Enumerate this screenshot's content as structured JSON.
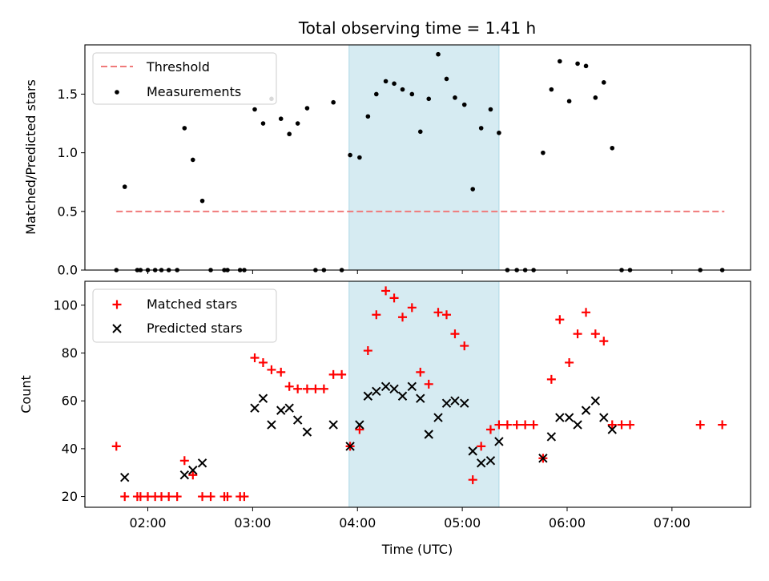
{
  "title": "Total observing time = 1.41 h",
  "colors": {
    "threshold": "#f07a7a",
    "measurement": "#000000",
    "matched": "#ff0000",
    "predicted": "#000000",
    "span_fill": "#add8e6"
  },
  "chart_data": [
    {
      "type": "scatter",
      "panel": "top",
      "ylabel": "Matched/Predicted stars",
      "xlabel": "",
      "xlim_hours": [
        1.4,
        7.75
      ],
      "ylim": [
        0,
        1.92
      ],
      "yticks": [
        0.0,
        0.5,
        1.0,
        1.5
      ],
      "ytick_labels": [
        "0.0",
        "0.5",
        "1.0",
        "1.5"
      ],
      "xticks_hours": [
        2,
        3,
        4,
        5,
        6,
        7
      ],
      "observing_span_hours": [
        3.92,
        5.35
      ],
      "legend_position": "upper-left",
      "threshold": {
        "name": "Threshold",
        "value": 0.5,
        "x_range_hours": [
          1.7,
          7.5
        ]
      },
      "series": [
        {
          "name": "Measurements",
          "x_hours": [
            1.7,
            1.78,
            1.9,
            1.93,
            2.0,
            2.07,
            2.13,
            2.2,
            2.28,
            2.35,
            2.43,
            2.52,
            2.6,
            2.73,
            2.76,
            2.88,
            2.92,
            3.02,
            3.1,
            3.18,
            3.27,
            3.35,
            3.43,
            3.52,
            3.6,
            3.68,
            3.77,
            3.85,
            3.93,
            4.02,
            4.1,
            4.18,
            4.27,
            4.35,
            4.43,
            4.52,
            4.6,
            4.68,
            4.77,
            4.85,
            4.93,
            5.02,
            5.1,
            5.18,
            5.27,
            5.35,
            5.43,
            5.52,
            5.6,
            5.68,
            5.77,
            5.85,
            5.93,
            6.02,
            6.1,
            6.18,
            6.27,
            6.35,
            6.43,
            6.52,
            6.6,
            7.27,
            7.48
          ],
          "y": [
            0.0,
            0.71,
            0.0,
            0.0,
            0.0,
            0.0,
            0.0,
            0.0,
            0.0,
            1.21,
            0.94,
            0.59,
            0.0,
            0.0,
            0.0,
            0.0,
            0.0,
            1.37,
            1.25,
            1.46,
            1.29,
            1.16,
            1.25,
            1.38,
            0.0,
            0.0,
            1.43,
            0.0,
            0.98,
            0.96,
            1.31,
            1.5,
            1.61,
            1.59,
            1.54,
            1.5,
            1.18,
            1.46,
            1.84,
            1.63,
            1.47,
            1.41,
            0.69,
            1.21,
            1.37,
            1.17,
            0.0,
            0.0,
            0.0,
            0.0,
            1.0,
            1.54,
            1.78,
            1.44,
            1.76,
            1.74,
            1.47,
            1.6,
            1.04,
            0.0,
            0.0,
            0.0,
            0.0
          ]
        }
      ]
    },
    {
      "type": "scatter",
      "panel": "bottom",
      "ylabel": "Count",
      "xlabel": "Time (UTC)",
      "xlim_hours": [
        1.4,
        7.75
      ],
      "ylim": [
        15.5,
        110
      ],
      "yticks": [
        20,
        40,
        60,
        80,
        100
      ],
      "ytick_labels": [
        "20",
        "40",
        "60",
        "80",
        "100"
      ],
      "xticks_hours": [
        2,
        3,
        4,
        5,
        6,
        7
      ],
      "xtick_labels": [
        "02:00",
        "03:00",
        "04:00",
        "05:00",
        "06:00",
        "07:00"
      ],
      "observing_span_hours": [
        3.92,
        5.35
      ],
      "legend_position": "upper-left",
      "series": [
        {
          "name": "Matched stars",
          "marker": "plus",
          "x_hours": [
            1.7,
            1.78,
            1.9,
            1.93,
            2.0,
            2.07,
            2.13,
            2.2,
            2.28,
            2.35,
            2.43,
            2.52,
            2.6,
            2.73,
            2.76,
            2.88,
            2.92,
            3.02,
            3.1,
            3.18,
            3.27,
            3.35,
            3.43,
            3.52,
            3.6,
            3.68,
            3.77,
            3.85,
            3.93,
            4.02,
            4.1,
            4.18,
            4.27,
            4.35,
            4.43,
            4.52,
            4.6,
            4.68,
            4.77,
            4.85,
            4.93,
            5.02,
            5.1,
            5.18,
            5.27,
            5.35,
            5.43,
            5.52,
            5.6,
            5.68,
            5.77,
            5.85,
            5.93,
            6.02,
            6.1,
            6.18,
            6.27,
            6.35,
            6.43,
            6.52,
            6.6,
            7.27,
            7.48
          ],
          "y": [
            41,
            20,
            20,
            20,
            20,
            20,
            20,
            20,
            20,
            35,
            29,
            20,
            20,
            20,
            20,
            20,
            20,
            78,
            76,
            73,
            72,
            66,
            65,
            65,
            65,
            65,
            71,
            71,
            41,
            48,
            81,
            96,
            106,
            103,
            95,
            99,
            72,
            67,
            97,
            96,
            88,
            83,
            27,
            41,
            48,
            50,
            50,
            50,
            50,
            50,
            36,
            69,
            94,
            76,
            88,
            97,
            88,
            85,
            50,
            50,
            50,
            50,
            50
          ]
        },
        {
          "name": "Predicted stars",
          "marker": "x",
          "x_hours": [
            1.78,
            2.35,
            2.43,
            2.52,
            3.02,
            3.1,
            3.18,
            3.27,
            3.35,
            3.43,
            3.52,
            3.77,
            3.93,
            4.02,
            4.1,
            4.18,
            4.27,
            4.35,
            4.43,
            4.52,
            4.6,
            4.68,
            4.77,
            4.85,
            4.93,
            5.02,
            5.1,
            5.18,
            5.27,
            5.35,
            5.77,
            5.85,
            5.93,
            6.02,
            6.1,
            6.18,
            6.27,
            6.35,
            6.43
          ],
          "y": [
            28,
            29,
            31,
            34,
            57,
            61,
            50,
            56,
            57,
            52,
            47,
            50,
            41,
            50,
            62,
            64,
            66,
            65,
            62,
            66,
            61,
            46,
            53,
            59,
            60,
            59,
            39,
            34,
            35,
            43,
            36,
            45,
            53,
            53,
            50,
            56,
            60,
            53,
            48
          ]
        }
      ]
    }
  ]
}
